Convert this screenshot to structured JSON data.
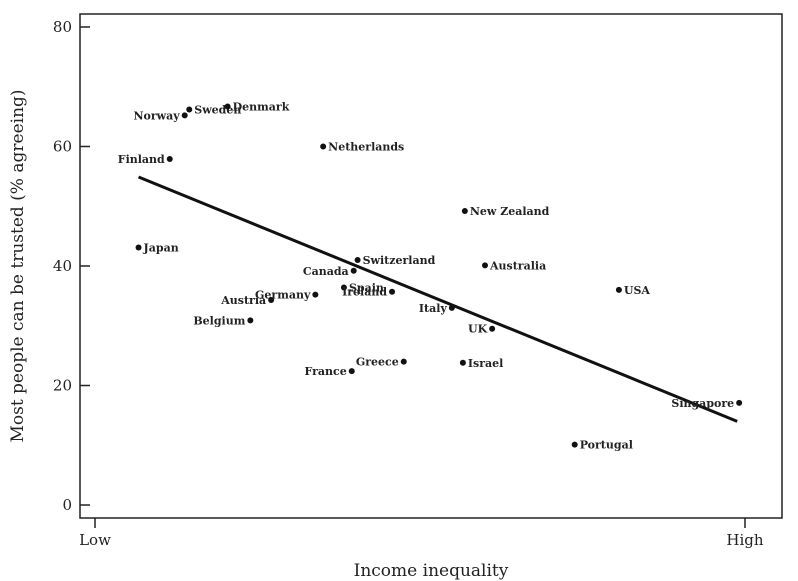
{
  "chart_data": {
    "type": "scatter",
    "title": "",
    "xlabel": "Income inequality",
    "ylabel": "Most people can be trusted (% agreeing)",
    "x_tick_labels": [
      {
        "label": "Low",
        "pos": 0.0
      },
      {
        "label": "High",
        "pos": 1.0
      }
    ],
    "xlim": [
      0,
      1
    ],
    "yticks": [
      0,
      20,
      40,
      60,
      80
    ],
    "ylim": [
      -2,
      82
    ],
    "grid": false,
    "legend": "none",
    "points": [
      {
        "name": "Sweden",
        "x": 0.145,
        "y": 66.2,
        "anchor": "start"
      },
      {
        "name": "Norway",
        "x": 0.138,
        "y": 65.2,
        "anchor": "end"
      },
      {
        "name": "Denmark",
        "x": 0.204,
        "y": 66.7,
        "anchor": "start"
      },
      {
        "name": "Finland",
        "x": 0.115,
        "y": 57.9,
        "anchor": "end"
      },
      {
        "name": "Netherlands",
        "x": 0.351,
        "y": 60.0,
        "anchor": "start"
      },
      {
        "name": "New Zealand",
        "x": 0.569,
        "y": 49.2,
        "anchor": "start"
      },
      {
        "name": "Japan",
        "x": 0.067,
        "y": 43.1,
        "anchor": "start"
      },
      {
        "name": "Switzerland",
        "x": 0.404,
        "y": 41.0,
        "anchor": "start"
      },
      {
        "name": "Canada",
        "x": 0.398,
        "y": 39.2,
        "anchor": "end"
      },
      {
        "name": "Australia",
        "x": 0.6,
        "y": 40.1,
        "anchor": "start"
      },
      {
        "name": "Germany",
        "x": 0.339,
        "y": 35.2,
        "anchor": "end"
      },
      {
        "name": "Spain",
        "x": 0.383,
        "y": 36.4,
        "anchor": "start"
      },
      {
        "name": "Ireland",
        "x": 0.457,
        "y": 35.7,
        "anchor": "end"
      },
      {
        "name": "Austria",
        "x": 0.271,
        "y": 34.3,
        "anchor": "end"
      },
      {
        "name": "Italy",
        "x": 0.549,
        "y": 33.0,
        "anchor": "end"
      },
      {
        "name": "USA",
        "x": 0.806,
        "y": 36.0,
        "anchor": "start"
      },
      {
        "name": "Belgium",
        "x": 0.239,
        "y": 30.9,
        "anchor": "end"
      },
      {
        "name": "UK",
        "x": 0.611,
        "y": 29.5,
        "anchor": "end"
      },
      {
        "name": "Greece",
        "x": 0.475,
        "y": 24.0,
        "anchor": "end"
      },
      {
        "name": "Israel",
        "x": 0.566,
        "y": 23.8,
        "anchor": "start"
      },
      {
        "name": "France",
        "x": 0.395,
        "y": 22.4,
        "anchor": "end"
      },
      {
        "name": "Singapore",
        "x": 0.991,
        "y": 17.1,
        "anchor": "end"
      },
      {
        "name": "Portugal",
        "x": 0.738,
        "y": 10.1,
        "anchor": "start"
      }
    ],
    "trend_line": {
      "x1": 0.067,
      "y1": 54.9,
      "x2": 0.988,
      "y2": 14.0
    }
  }
}
